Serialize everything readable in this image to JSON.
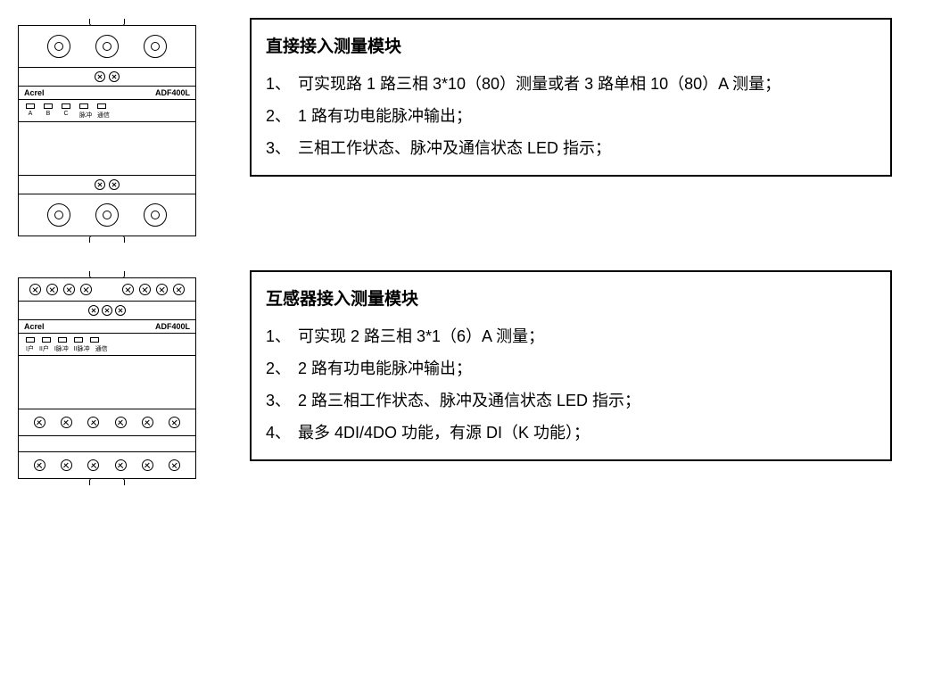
{
  "device_common": {
    "brand": "Acrel",
    "model": "ADF400L"
  },
  "module1": {
    "led_labels": [
      "A",
      "B",
      "C",
      "脉冲",
      "通信"
    ],
    "title": "直接接入测量模块",
    "items": [
      {
        "num": "1、",
        "text": "可实现路 1 路三相 3*10（80）测量或者 3 路单相 10（80）A 测量；"
      },
      {
        "num": "2、",
        "text": "1 路有功电能脉冲输出；"
      },
      {
        "num": "3、",
        "text": "三相工作状态、脉冲及通信状态 LED 指示；"
      }
    ]
  },
  "module2": {
    "led_labels": [
      "I户",
      "II户",
      "I脉冲",
      "II脉冲",
      "通信"
    ],
    "title": "互感器接入测量模块",
    "items": [
      {
        "num": "1、",
        "text": "可实现 2 路三相 3*1（6）A 测量；"
      },
      {
        "num": "2、",
        "text": "2 路有功电能脉冲输出；"
      },
      {
        "num": "3、",
        "text": "2 路三相工作状态、脉冲及通信状态 LED 指示；"
      },
      {
        "num": "4、",
        "text": "最多 4DI/4DO 功能，有源 DI（K 功能）；"
      }
    ]
  },
  "style": {
    "border_color": "#000000",
    "bg_color": "#ffffff",
    "desc_font_size": 18,
    "title_font_size": 19
  }
}
